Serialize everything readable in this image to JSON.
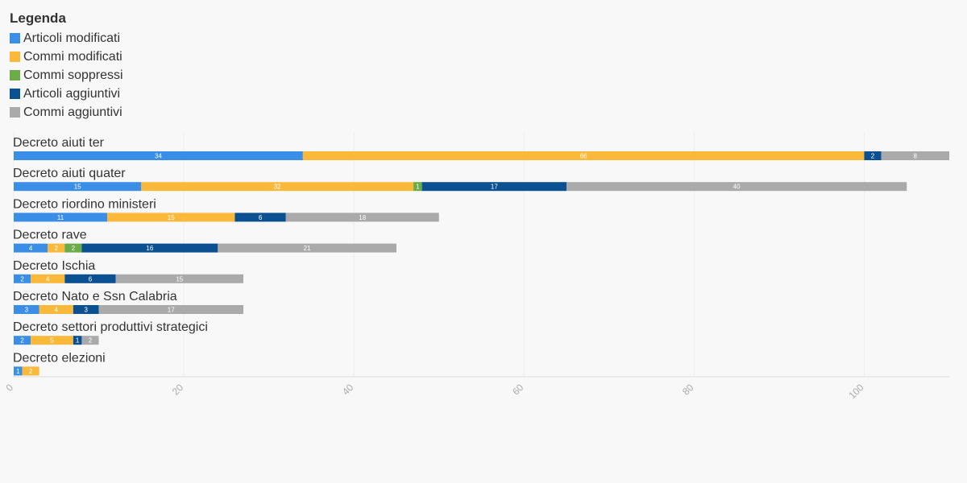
{
  "legend": {
    "title": "Legenda"
  },
  "chart_data": {
    "type": "bar",
    "orientation": "horizontal",
    "stacked": true,
    "categories": [
      "Decreto aiuti ter",
      "Decreto aiuti quater",
      "Decreto riordino ministeri",
      "Decreto rave",
      "Decreto Ischia",
      "Decreto Nato e Ssn Calabria",
      "Decreto settori produttivi strategici",
      "Decreto elezioni"
    ],
    "series": [
      {
        "name": "Articoli modificati",
        "color": "#3a8ee6",
        "label_color": "#ffffff",
        "values": [
          34,
          15,
          11,
          4,
          2,
          3,
          2,
          1
        ]
      },
      {
        "name": "Commi modificati",
        "color": "#fbb93c",
        "label_color": "#ffffff",
        "values": [
          66,
          32,
          15,
          2,
          4,
          4,
          5,
          2
        ]
      },
      {
        "name": "Commi soppressi",
        "color": "#6aac48",
        "label_color": "#ffffff",
        "values": [
          0,
          1,
          0,
          2,
          0,
          0,
          0,
          0
        ]
      },
      {
        "name": "Articoli aggiuntivi",
        "color": "#0b5192",
        "label_color": "#ffffff",
        "values": [
          2,
          17,
          6,
          16,
          6,
          3,
          1,
          0
        ]
      },
      {
        "name": "Commi aggiuntivi",
        "color": "#aaaaaa",
        "label_color": "#ffffff",
        "values": [
          8,
          40,
          18,
          21,
          15,
          17,
          2,
          0
        ]
      }
    ],
    "xlim": [
      0,
      110
    ],
    "xticks": [
      0,
      20,
      40,
      60,
      80,
      100
    ],
    "grid": true,
    "legend_position": "top-left",
    "title": "",
    "xlabel": "",
    "ylabel": ""
  }
}
